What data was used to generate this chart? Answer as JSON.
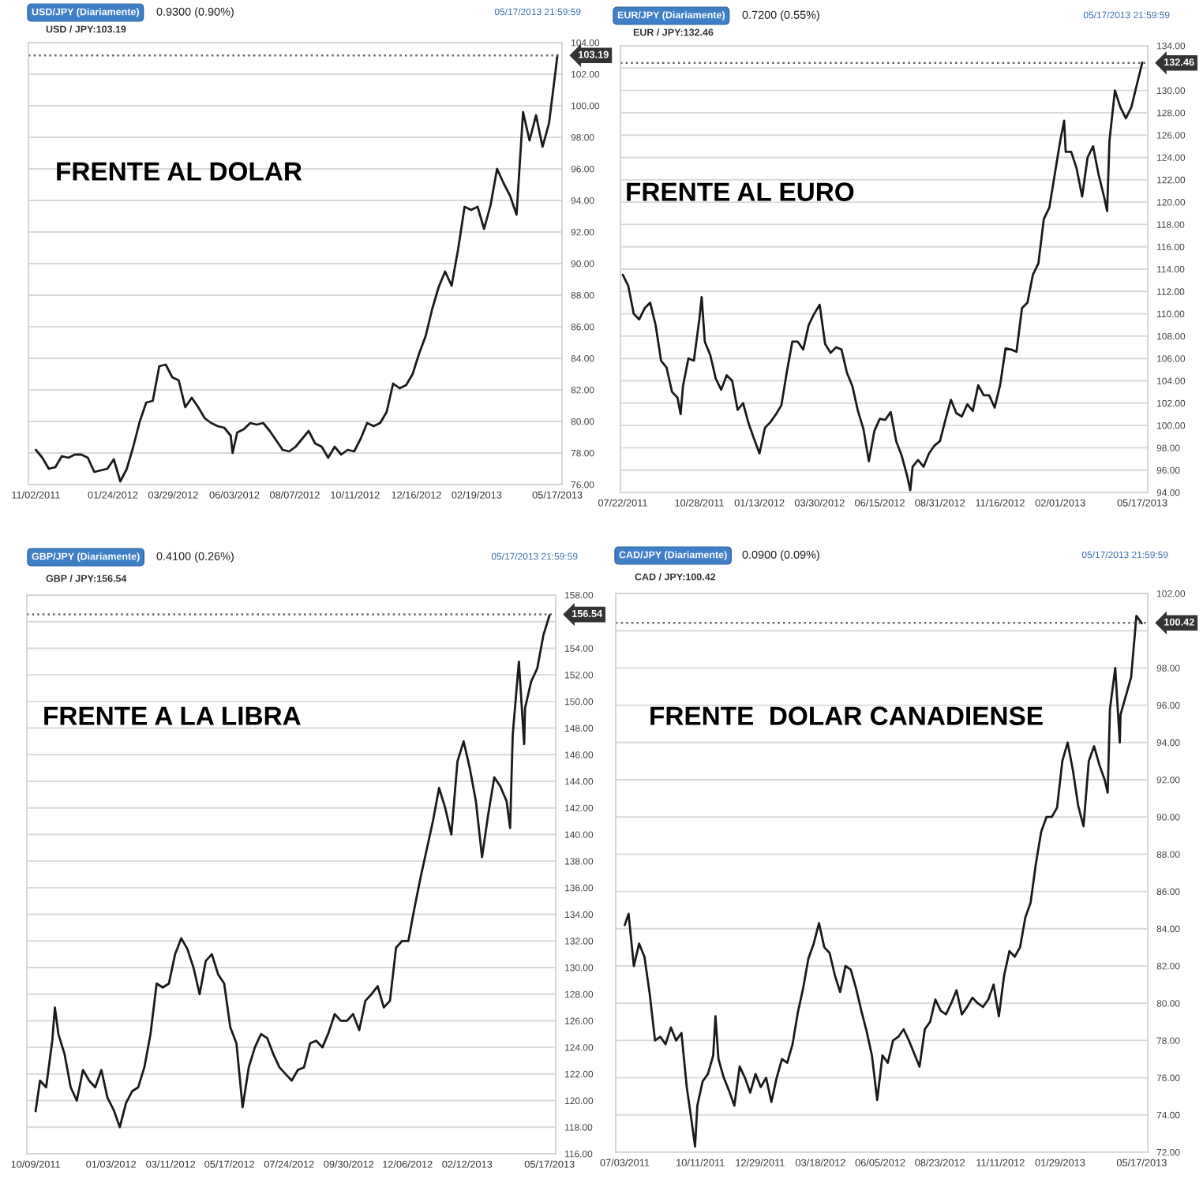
{
  "chart_data": [
    {
      "type": "line",
      "title": "USD/JPY (Diariamente)",
      "subtitle": "0.9300 (0.90%)",
      "annotations": [
        "05/17/2013 21:59:59",
        "USD / JPY:103.19",
        "FRENTE AL DOLAR"
      ],
      "x": [
        "2011-11-02",
        "2011-11-09",
        "2011-11-16",
        "2011-11-23",
        "2011-11-30",
        "2011-12-07",
        "2011-12-14",
        "2011-12-21",
        "2011-12-28",
        "2012-01-04",
        "2012-01-11",
        "2012-01-18",
        "2012-01-25",
        "2012-02-01",
        "2012-02-08",
        "2012-02-15",
        "2012-02-22",
        "2012-02-29",
        "2012-03-07",
        "2012-03-14",
        "2012-03-21",
        "2012-03-28",
        "2012-04-04",
        "2012-04-11",
        "2012-04-18",
        "2012-04-25",
        "2012-05-02",
        "2012-05-09",
        "2012-05-16",
        "2012-05-23",
        "2012-05-30",
        "2012-06-01",
        "2012-06-06",
        "2012-06-13",
        "2012-06-20",
        "2012-06-27",
        "2012-07-04",
        "2012-07-11",
        "2012-07-18",
        "2012-07-25",
        "2012-08-01",
        "2012-08-08",
        "2012-08-15",
        "2012-08-22",
        "2012-08-29",
        "2012-09-05",
        "2012-09-12",
        "2012-09-19",
        "2012-09-26",
        "2012-10-03",
        "2012-10-10",
        "2012-10-17",
        "2012-10-24",
        "2012-10-31",
        "2012-11-07",
        "2012-11-14",
        "2012-11-21",
        "2012-11-28",
        "2012-12-05",
        "2012-12-12",
        "2012-12-19",
        "2012-12-26",
        "2013-01-02",
        "2013-01-09",
        "2013-01-16",
        "2013-01-23",
        "2013-01-30",
        "2013-02-06",
        "2013-02-13",
        "2013-02-20",
        "2013-02-27",
        "2013-03-06",
        "2013-03-13",
        "2013-03-20",
        "2013-03-27",
        "2013-04-03",
        "2013-04-10",
        "2013-04-17",
        "2013-04-24",
        "2013-05-01",
        "2013-05-08",
        "2013-05-15",
        "2013-05-17"
      ],
      "series": [
        {
          "color": "#1a1a1a",
          "values": [
            78.2,
            77.7,
            77.0,
            77.1,
            77.8,
            77.7,
            77.9,
            77.9,
            77.7,
            76.8,
            76.9,
            77.0,
            77.6,
            76.2,
            77.0,
            78.4,
            80.0,
            81.2,
            81.3,
            83.5,
            83.6,
            82.8,
            82.6,
            80.9,
            81.5,
            80.9,
            80.2,
            79.9,
            79.7,
            79.6,
            79.1,
            78.0,
            79.3,
            79.5,
            79.9,
            79.8,
            79.9,
            79.4,
            78.8,
            78.2,
            78.1,
            78.4,
            78.9,
            79.4,
            78.6,
            78.4,
            77.7,
            78.4,
            77.9,
            78.2,
            78.1,
            78.9,
            79.9,
            79.7,
            79.9,
            80.6,
            82.4,
            82.1,
            82.3,
            83.0,
            84.3,
            85.4,
            87.1,
            88.5,
            89.5,
            88.6,
            90.9,
            93.6,
            93.4,
            93.6,
            92.2,
            93.7,
            96.0,
            95.1,
            94.3,
            93.1,
            99.6,
            97.8,
            99.4,
            97.4,
            98.9,
            102.2,
            103.2
          ]
        }
      ],
      "xlim": [
        "2011-10-25",
        "2013-05-22"
      ],
      "xticks": [
        {
          "value": "2011-11-02",
          "label": "11/02/2011"
        },
        {
          "value": "2012-01-24",
          "label": "01/24/2012"
        },
        {
          "value": "2012-03-29",
          "label": "03/29/2012"
        },
        {
          "value": "2012-06-03",
          "label": "06/03/2012"
        },
        {
          "value": "2012-08-07",
          "label": "08/07/2012"
        },
        {
          "value": "2012-10-11",
          "label": "10/11/2012"
        },
        {
          "value": "2012-12-16",
          "label": "12/16/2012"
        },
        {
          "value": "2013-02-19",
          "label": "02/19/2013"
        },
        {
          "value": "2013-05-17",
          "label": "05/17/2013"
        }
      ],
      "ylim": [
        76,
        104
      ],
      "yticks": [
        {
          "value": 76,
          "label": "76.00"
        },
        {
          "value": 78,
          "label": "78.00"
        },
        {
          "value": 80,
          "label": "80.00"
        },
        {
          "value": 82,
          "label": "82.00"
        },
        {
          "value": 84,
          "label": "84.00"
        },
        {
          "value": 86,
          "label": "86.00"
        },
        {
          "value": 88,
          "label": "88.00"
        },
        {
          "value": 90,
          "label": "90.00"
        },
        {
          "value": 92,
          "label": "92.00"
        },
        {
          "value": 94,
          "label": "94.00"
        },
        {
          "value": 96,
          "label": "96.00"
        },
        {
          "value": 98,
          "label": "98.00"
        },
        {
          "value": 100,
          "label": "100.00"
        },
        {
          "value": 102,
          "label": "102.00"
        },
        {
          "value": 104,
          "label": "104.00"
        }
      ],
      "ref_lines": [
        {
          "axis": "y",
          "value": 103.19,
          "label": "103.19",
          "line_style": "dotted",
          "color": "#666666"
        }
      ],
      "grid": "y"
    },
    {
      "type": "line",
      "title": "EUR/JPY (Diariamente)",
      "subtitle": "0.7200 (0.55%)",
      "annotations": [
        "05/17/2013 21:59:59",
        "EUR / JPY:132.46",
        "FRENTE AL EURO"
      ],
      "x": [
        "2011-07-22",
        "2011-07-29",
        "2011-08-05",
        "2011-08-12",
        "2011-08-19",
        "2011-08-26",
        "2011-09-02",
        "2011-09-09",
        "2011-09-16",
        "2011-09-23",
        "2011-09-30",
        "2011-10-04",
        "2011-10-07",
        "2011-10-14",
        "2011-10-21",
        "2011-10-28",
        "2011-10-31",
        "2011-11-04",
        "2011-11-11",
        "2011-11-18",
        "2011-11-25",
        "2011-12-02",
        "2011-12-09",
        "2011-12-16",
        "2011-12-23",
        "2011-12-30",
        "2012-01-06",
        "2012-01-13",
        "2012-01-20",
        "2012-01-27",
        "2012-02-03",
        "2012-02-10",
        "2012-02-17",
        "2012-02-24",
        "2012-03-02",
        "2012-03-09",
        "2012-03-16",
        "2012-03-23",
        "2012-03-30",
        "2012-04-06",
        "2012-04-13",
        "2012-04-20",
        "2012-04-27",
        "2012-05-04",
        "2012-05-11",
        "2012-05-18",
        "2012-05-25",
        "2012-06-01",
        "2012-06-08",
        "2012-06-15",
        "2012-06-22",
        "2012-06-29",
        "2012-07-06",
        "2012-07-13",
        "2012-07-20",
        "2012-07-24",
        "2012-07-27",
        "2012-08-03",
        "2012-08-10",
        "2012-08-17",
        "2012-08-24",
        "2012-08-31",
        "2012-09-07",
        "2012-09-14",
        "2012-09-21",
        "2012-09-28",
        "2012-10-05",
        "2012-10-12",
        "2012-10-19",
        "2012-10-26",
        "2012-11-02",
        "2012-11-09",
        "2012-11-16",
        "2012-11-23",
        "2012-11-30",
        "2012-12-07",
        "2012-12-14",
        "2012-12-21",
        "2012-12-28",
        "2013-01-04",
        "2013-01-11",
        "2013-01-18",
        "2013-01-25",
        "2013-02-01",
        "2013-02-06",
        "2013-02-08",
        "2013-02-15",
        "2013-02-22",
        "2013-03-01",
        "2013-03-08",
        "2013-03-15",
        "2013-03-22",
        "2013-03-29",
        "2013-04-02",
        "2013-04-05",
        "2013-04-12",
        "2013-04-19",
        "2013-04-26",
        "2013-05-03",
        "2013-05-10",
        "2013-05-17"
      ],
      "series": [
        {
          "color": "#1a1a1a",
          "values": [
            113.5,
            112.5,
            110.0,
            109.5,
            110.5,
            111.0,
            109.0,
            105.8,
            105.2,
            103.0,
            102.5,
            101.0,
            103.5,
            106.0,
            105.8,
            109.5,
            111.5,
            107.5,
            106.3,
            104.2,
            103.2,
            104.5,
            104.0,
            101.4,
            102.0,
            100.2,
            98.8,
            97.5,
            99.8,
            100.3,
            101.0,
            101.8,
            104.8,
            107.5,
            107.5,
            106.8,
            109.0,
            110.0,
            110.8,
            107.3,
            106.5,
            107.0,
            106.8,
            104.7,
            103.5,
            101.3,
            99.7,
            96.8,
            99.5,
            100.6,
            100.5,
            101.2,
            98.6,
            97.3,
            95.5,
            94.2,
            96.3,
            96.9,
            96.3,
            97.5,
            98.2,
            98.6,
            100.5,
            102.3,
            101.1,
            100.8,
            101.9,
            101.3,
            103.6,
            102.7,
            102.7,
            101.6,
            103.6,
            106.9,
            106.8,
            106.6,
            110.5,
            111.0,
            113.5,
            114.5,
            118.5,
            119.5,
            122.5,
            125.5,
            127.3,
            124.5,
            124.5,
            123.0,
            120.5,
            124.0,
            125.0,
            122.5,
            120.5,
            119.2,
            125.5,
            130.0,
            128.5,
            127.5,
            128.5,
            130.5,
            132.5
          ]
        }
      ],
      "xlim": [
        "2011-07-19",
        "2013-05-24"
      ],
      "xticks": [
        {
          "value": "2011-07-22",
          "label": "07/22/2011"
        },
        {
          "value": "2011-10-28",
          "label": "10/28/2011"
        },
        {
          "value": "2012-01-13",
          "label": "01/13/2012"
        },
        {
          "value": "2012-03-30",
          "label": "03/30/2012"
        },
        {
          "value": "2012-06-15",
          "label": "06/15/2012"
        },
        {
          "value": "2012-08-31",
          "label": "08/31/2012"
        },
        {
          "value": "2012-11-16",
          "label": "11/16/2012"
        },
        {
          "value": "2013-02-01",
          "label": "02/01/2013"
        },
        {
          "value": "2013-05-17",
          "label": "05/17/2013"
        }
      ],
      "ylim": [
        94,
        134
      ],
      "yticks": [
        {
          "value": 94,
          "label": "94.00"
        },
        {
          "value": 96,
          "label": "96.00"
        },
        {
          "value": 98,
          "label": "98.00"
        },
        {
          "value": 100,
          "label": "100.00"
        },
        {
          "value": 102,
          "label": "102.00"
        },
        {
          "value": 104,
          "label": "104.00"
        },
        {
          "value": 106,
          "label": "106.00"
        },
        {
          "value": 108,
          "label": "108.00"
        },
        {
          "value": 110,
          "label": "110.00"
        },
        {
          "value": 112,
          "label": "112.00"
        },
        {
          "value": 114,
          "label": "114.00"
        },
        {
          "value": 116,
          "label": "116.00"
        },
        {
          "value": 118,
          "label": "118.00"
        },
        {
          "value": 120,
          "label": "120.00"
        },
        {
          "value": 122,
          "label": "122.00"
        },
        {
          "value": 124,
          "label": "124.00"
        },
        {
          "value": 126,
          "label": "126.00"
        },
        {
          "value": 128,
          "label": "128.00"
        },
        {
          "value": 130,
          "label": "130.00"
        },
        {
          "value": 132,
          "label": null
        },
        {
          "value": 134,
          "label": "134.00"
        }
      ],
      "ref_lines": [
        {
          "axis": "y",
          "value": 132.46,
          "label": "132.46",
          "line_style": "dotted",
          "color": "#666666"
        }
      ],
      "grid": "y"
    },
    {
      "type": "line",
      "title": "GBP/JPY (Diariamente)",
      "subtitle": "0.4100 (0.26%)",
      "annotations": [
        "05/17/2013 21:59:59",
        "GBP / JPY:156.54",
        "FRENTE A LA LIBRA"
      ],
      "x": [
        "2011-10-09",
        "2011-10-14",
        "2011-10-21",
        "2011-10-28",
        "2011-10-31",
        "2011-11-04",
        "2011-11-11",
        "2011-11-18",
        "2011-11-25",
        "2011-12-02",
        "2011-12-09",
        "2011-12-16",
        "2011-12-23",
        "2011-12-30",
        "2012-01-06",
        "2012-01-13",
        "2012-01-20",
        "2012-01-27",
        "2012-02-03",
        "2012-02-10",
        "2012-02-17",
        "2012-02-24",
        "2012-03-02",
        "2012-03-09",
        "2012-03-16",
        "2012-03-23",
        "2012-03-30",
        "2012-04-06",
        "2012-04-13",
        "2012-04-20",
        "2012-04-27",
        "2012-05-04",
        "2012-05-11",
        "2012-05-18",
        "2012-05-25",
        "2012-06-01",
        "2012-06-08",
        "2012-06-15",
        "2012-06-22",
        "2012-06-29",
        "2012-07-06",
        "2012-07-13",
        "2012-07-20",
        "2012-07-27",
        "2012-08-03",
        "2012-08-10",
        "2012-08-17",
        "2012-08-24",
        "2012-08-31",
        "2012-09-07",
        "2012-09-14",
        "2012-09-21",
        "2012-09-28",
        "2012-10-05",
        "2012-10-12",
        "2012-10-19",
        "2012-10-26",
        "2012-11-02",
        "2012-11-09",
        "2012-11-16",
        "2012-11-23",
        "2012-11-30",
        "2012-12-07",
        "2012-12-14",
        "2012-12-21",
        "2012-12-28",
        "2013-01-04",
        "2013-01-11",
        "2013-01-18",
        "2013-01-25",
        "2013-02-01",
        "2013-02-08",
        "2013-02-15",
        "2013-02-22",
        "2013-03-01",
        "2013-03-08",
        "2013-03-15",
        "2013-03-22",
        "2013-03-29",
        "2013-04-02",
        "2013-04-05",
        "2013-04-12",
        "2013-04-18",
        "2013-04-19",
        "2013-04-26",
        "2013-05-03",
        "2013-05-10",
        "2013-05-17"
      ],
      "series": [
        {
          "color": "#1a1a1a",
          "values": [
            119.2,
            121.5,
            121.0,
            124.5,
            127.0,
            125.0,
            123.5,
            121.0,
            120.0,
            122.3,
            121.5,
            121.0,
            122.3,
            120.2,
            119.3,
            118.0,
            119.8,
            120.7,
            121.0,
            122.5,
            125.0,
            128.8,
            128.5,
            128.8,
            131.0,
            132.2,
            131.4,
            130.0,
            128.0,
            130.5,
            131.0,
            129.5,
            128.8,
            125.5,
            124.3,
            119.5,
            122.5,
            124.0,
            125.0,
            124.7,
            123.5,
            122.5,
            122.0,
            121.5,
            122.3,
            122.5,
            124.3,
            124.5,
            124.0,
            125.1,
            126.5,
            126.0,
            126.0,
            126.5,
            125.3,
            127.5,
            128.0,
            128.6,
            127.0,
            127.5,
            131.5,
            132.0,
            132.0,
            134.5,
            136.8,
            138.9,
            141.0,
            143.5,
            142.0,
            140.0,
            145.5,
            147.0,
            145.0,
            142.5,
            138.3,
            141.5,
            144.3,
            143.6,
            142.5,
            140.5,
            147.5,
            153.0,
            146.8,
            149.5,
            151.5,
            152.5,
            155.0,
            156.5
          ]
        }
      ],
      "xlim": [
        "2011-09-29",
        "2013-05-24"
      ],
      "xticks": [
        {
          "value": "2011-10-09",
          "label": "10/09/2011"
        },
        {
          "value": "2012-01-03",
          "label": "01/03/2012"
        },
        {
          "value": "2012-03-11",
          "label": "03/11/2012"
        },
        {
          "value": "2012-05-17",
          "label": "05/17/2012"
        },
        {
          "value": "2012-07-24",
          "label": "07/24/2012"
        },
        {
          "value": "2012-09-30",
          "label": "09/30/2012"
        },
        {
          "value": "2012-12-06",
          "label": "12/06/2012"
        },
        {
          "value": "2013-02-12",
          "label": "02/12/2013"
        },
        {
          "value": "2013-05-17",
          "label": "05/17/2013"
        }
      ],
      "ylim": [
        116,
        158
      ],
      "yticks": [
        {
          "value": 116,
          "label": "116.00"
        },
        {
          "value": 118,
          "label": "118.00"
        },
        {
          "value": 120,
          "label": "120.00"
        },
        {
          "value": 122,
          "label": "122.00"
        },
        {
          "value": 124,
          "label": "124.00"
        },
        {
          "value": 126,
          "label": "126.00"
        },
        {
          "value": 128,
          "label": "128.00"
        },
        {
          "value": 130,
          "label": "130.00"
        },
        {
          "value": 132,
          "label": "132.00"
        },
        {
          "value": 134,
          "label": "134.00"
        },
        {
          "value": 136,
          "label": "136.00"
        },
        {
          "value": 138,
          "label": "138.00"
        },
        {
          "value": 140,
          "label": "140.00"
        },
        {
          "value": 142,
          "label": "142.00"
        },
        {
          "value": 144,
          "label": "144.00"
        },
        {
          "value": 146,
          "label": "146.00"
        },
        {
          "value": 148,
          "label": "148.00"
        },
        {
          "value": 150,
          "label": "150.00"
        },
        {
          "value": 152,
          "label": "152.00"
        },
        {
          "value": 154,
          "label": "154.00"
        },
        {
          "value": 156,
          "label": null
        },
        {
          "value": 158,
          "label": "158.00"
        }
      ],
      "ref_lines": [
        {
          "axis": "y",
          "value": 156.54,
          "label": "156.54",
          "line_style": "dotted",
          "color": "#666666"
        }
      ],
      "grid": "y"
    },
    {
      "type": "line",
      "title": "CAD/JPY (Diariamente)",
      "subtitle": "0.0900 (0.09%)",
      "annotations": [
        "05/17/2013 21:59:59",
        "CAD / JPY:100.42",
        "FRENTE  DOLAR CANADIENSE"
      ],
      "x": [
        "2011-07-03",
        "2011-07-08",
        "2011-07-15",
        "2011-07-22",
        "2011-07-29",
        "2011-08-05",
        "2011-08-12",
        "2011-08-19",
        "2011-08-26",
        "2011-09-02",
        "2011-09-09",
        "2011-09-16",
        "2011-09-23",
        "2011-09-30",
        "2011-10-04",
        "2011-10-07",
        "2011-10-14",
        "2011-10-21",
        "2011-10-28",
        "2011-10-31",
        "2011-11-04",
        "2011-11-11",
        "2011-11-18",
        "2011-11-25",
        "2011-12-02",
        "2011-12-09",
        "2011-12-16",
        "2011-12-23",
        "2011-12-30",
        "2012-01-06",
        "2012-01-13",
        "2012-01-20",
        "2012-01-27",
        "2012-02-03",
        "2012-02-10",
        "2012-02-17",
        "2012-02-24",
        "2012-03-02",
        "2012-03-09",
        "2012-03-16",
        "2012-03-23",
        "2012-03-30",
        "2012-04-06",
        "2012-04-13",
        "2012-04-20",
        "2012-04-27",
        "2012-05-04",
        "2012-05-11",
        "2012-05-18",
        "2012-05-25",
        "2012-06-01",
        "2012-06-08",
        "2012-06-15",
        "2012-06-22",
        "2012-06-29",
        "2012-07-06",
        "2012-07-13",
        "2012-07-20",
        "2012-07-27",
        "2012-08-03",
        "2012-08-10",
        "2012-08-17",
        "2012-08-24",
        "2012-08-31",
        "2012-09-07",
        "2012-09-14",
        "2012-09-21",
        "2012-09-28",
        "2012-10-05",
        "2012-10-12",
        "2012-10-19",
        "2012-10-26",
        "2012-11-02",
        "2012-11-09",
        "2012-11-16",
        "2012-11-23",
        "2012-11-30",
        "2012-12-07",
        "2012-12-14",
        "2012-12-21",
        "2012-12-28",
        "2013-01-04",
        "2013-01-11",
        "2013-01-18",
        "2013-01-25",
        "2013-02-01",
        "2013-02-08",
        "2013-02-15",
        "2013-02-22",
        "2013-03-01",
        "2013-03-08",
        "2013-03-15",
        "2013-03-22",
        "2013-03-29",
        "2013-04-02",
        "2013-04-05",
        "2013-04-12",
        "2013-04-18",
        "2013-04-19",
        "2013-04-26",
        "2013-05-03",
        "2013-05-10",
        "2013-05-17"
      ],
      "series": [
        {
          "color": "#1a1a1a",
          "values": [
            84.2,
            84.8,
            82.0,
            83.2,
            82.5,
            80.5,
            78.0,
            78.2,
            77.8,
            78.7,
            78.0,
            78.4,
            75.5,
            73.5,
            72.3,
            74.5,
            75.8,
            76.2,
            77.2,
            79.3,
            77.0,
            76.0,
            75.3,
            74.5,
            76.6,
            76.0,
            75.2,
            76.2,
            75.5,
            76.0,
            74.7,
            76.0,
            77.0,
            76.8,
            77.8,
            79.5,
            80.8,
            82.4,
            83.2,
            84.3,
            83.0,
            82.7,
            81.5,
            80.6,
            82.0,
            81.8,
            80.8,
            79.6,
            78.5,
            77.2,
            74.8,
            77.2,
            76.8,
            78.0,
            78.2,
            78.6,
            78.0,
            77.3,
            76.6,
            78.6,
            79.0,
            80.2,
            79.6,
            79.4,
            80.0,
            80.7,
            79.4,
            79.8,
            80.3,
            80.0,
            79.8,
            80.2,
            81.0,
            79.3,
            81.5,
            82.8,
            82.5,
            83.0,
            84.6,
            85.4,
            87.5,
            89.2,
            90.0,
            90.0,
            90.5,
            93.0,
            94.0,
            92.5,
            90.6,
            89.5,
            93.0,
            93.8,
            92.8,
            92.0,
            91.3,
            95.8,
            98.0,
            94.0,
            95.5,
            96.5,
            97.5,
            100.8,
            100.4
          ]
        }
      ],
      "xlim": [
        "2011-06-21",
        "2013-05-25"
      ],
      "xticks": [
        {
          "value": "2011-07-03",
          "label": "07/03/2011"
        },
        {
          "value": "2011-10-11",
          "label": "10/11/2011"
        },
        {
          "value": "2011-12-29",
          "label": "12/29/2011"
        },
        {
          "value": "2012-03-18",
          "label": "03/18/2012"
        },
        {
          "value": "2012-06-05",
          "label": "06/05/2012"
        },
        {
          "value": "2012-08-23",
          "label": "08/23/2012"
        },
        {
          "value": "2012-11-11",
          "label": "11/11/2012"
        },
        {
          "value": "2013-01-29",
          "label": "01/29/2013"
        },
        {
          "value": "2013-05-17",
          "label": "05/17/2013"
        }
      ],
      "ylim": [
        72,
        102
      ],
      "yticks": [
        {
          "value": 72,
          "label": "72.00"
        },
        {
          "value": 74,
          "label": "74.00"
        },
        {
          "value": 76,
          "label": "76.00"
        },
        {
          "value": 78,
          "label": "78.00"
        },
        {
          "value": 80,
          "label": "80.00"
        },
        {
          "value": 82,
          "label": "82.00"
        },
        {
          "value": 84,
          "label": "84.00"
        },
        {
          "value": 86,
          "label": "86.00"
        },
        {
          "value": 88,
          "label": "88.00"
        },
        {
          "value": 90,
          "label": "90.00"
        },
        {
          "value": 92,
          "label": "92.00"
        },
        {
          "value": 94,
          "label": "94.00"
        },
        {
          "value": 96,
          "label": "96.00"
        },
        {
          "value": 98,
          "label": "98.00"
        },
        {
          "value": 100,
          "label": null
        },
        {
          "value": 102,
          "label": "102.00"
        }
      ],
      "ref_lines": [
        {
          "axis": "y",
          "value": 100.42,
          "label": "100.42",
          "line_style": "dotted",
          "color": "#666666"
        }
      ],
      "grid": "y"
    }
  ]
}
